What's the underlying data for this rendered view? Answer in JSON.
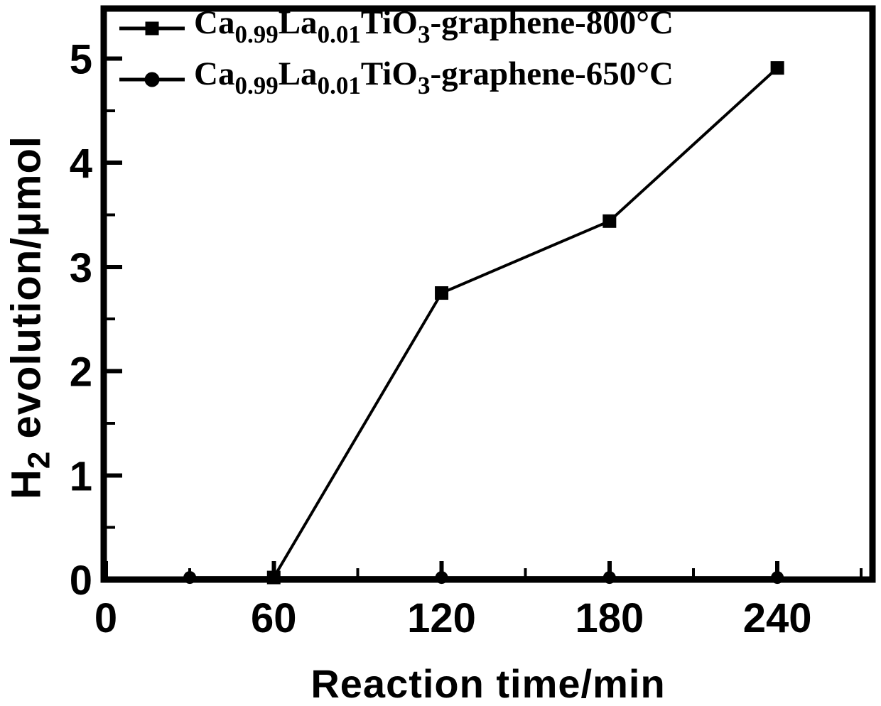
{
  "background_color": "#ffffff",
  "foreground_color": "#000000",
  "chart_data": {
    "type": "line",
    "title": "",
    "xlabel": "Reaction time/min",
    "ylabel": "H2 evolution/μmol",
    "ylabel_parts": [
      {
        "t": "H"
      },
      {
        "t": "2",
        "sub": true
      },
      {
        "t": " evolution/μmol"
      }
    ],
    "xlim": [
      0,
      274
    ],
    "ylim": [
      0,
      5.48
    ],
    "grid": false,
    "legend_position": "top-left",
    "x_major_ticks": [
      0,
      60,
      120,
      180,
      240
    ],
    "x_tick_labels": [
      "0",
      "60",
      "120",
      "180",
      "240"
    ],
    "x_minor_ticks": [
      30,
      90,
      150,
      210,
      270
    ],
    "y_major_ticks": [
      0,
      1,
      2,
      3,
      4,
      5
    ],
    "y_tick_labels": [
      "0",
      "1",
      "2",
      "3",
      "4",
      "5"
    ],
    "y_minor_ticks": [
      0.5,
      1.5,
      2.5,
      3.5,
      4.5
    ],
    "series": [
      {
        "name": "Ca0.99La0.01TiO3-graphene-650°C",
        "label_parts": [
          {
            "t": "Ca"
          },
          {
            "t": "0.99",
            "sub": true
          },
          {
            "t": "La"
          },
          {
            "t": "0.01",
            "sub": true
          },
          {
            "t": "TiO"
          },
          {
            "t": "3",
            "sub": true
          },
          {
            "t": "-graphene-650°C"
          }
        ],
        "marker": "circle",
        "color": "#000000",
        "points": [
          [
            30,
            0.02
          ],
          [
            60,
            0.02
          ],
          [
            120,
            0.02
          ],
          [
            180,
            0.02
          ],
          [
            240,
            0.02
          ]
        ]
      },
      {
        "name": "Ca0.99La0.01TiO3-graphene-800°C",
        "label_parts": [
          {
            "t": "Ca"
          },
          {
            "t": "0.99",
            "sub": true
          },
          {
            "t": "La"
          },
          {
            "t": "0.01",
            "sub": true
          },
          {
            "t": "TiO"
          },
          {
            "t": "3",
            "sub": true
          },
          {
            "t": "-graphene-800°C"
          }
        ],
        "marker": "square",
        "color": "#000000",
        "points": [
          [
            60,
            0.02
          ],
          [
            120,
            2.75
          ],
          [
            180,
            3.44
          ],
          [
            240,
            4.91
          ]
        ]
      }
    ],
    "legend_order": [
      1,
      0
    ]
  }
}
